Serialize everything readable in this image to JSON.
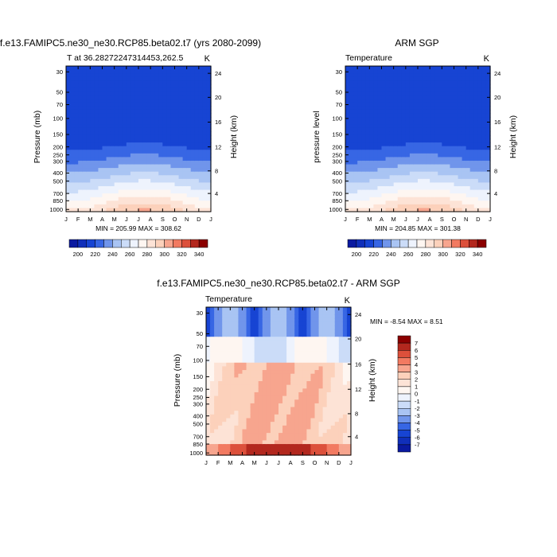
{
  "colors": {
    "cold": "#0a1aa0",
    "mid_blue": "#1a4fe0",
    "light_blue": "#a9c4f3",
    "neutral": "#ffffff",
    "peach": "#fcd1bb",
    "warm": "#f0644a",
    "hot": "#8b0000"
  },
  "chart_data": [
    {
      "type": "heatmap",
      "title": "f.e13.FAMIPC5.ne30_ne30.RCP85.beta02.t7 (yrs 2080-2099)",
      "subtitle_left": "T at 36.28272247314453,262.5",
      "subtitle_right": "K",
      "ylabel": "Pressure (mb)",
      "ylabel_right": "Height (km)",
      "x": [
        "J",
        "F",
        "M",
        "A",
        "M",
        "J",
        "J",
        "A",
        "S",
        "O",
        "N",
        "D",
        "J"
      ],
      "y_ticks": [
        "30",
        "50",
        "70",
        "100",
        "150",
        "200",
        "250",
        "300",
        "400",
        "500",
        "700",
        "850",
        "1000"
      ],
      "y_ticks_right": [
        "24",
        "20",
        "16",
        "12",
        "8",
        "4"
      ],
      "minmax": "MIN = 205.99 MAX = 308.62",
      "colorbar_labels": [
        "200",
        "220",
        "240",
        "260",
        "280",
        "300",
        "320",
        "340"
      ],
      "value_range": [
        205.99,
        308.62
      ]
    },
    {
      "type": "heatmap",
      "title": "ARM SGP",
      "subtitle_left": "Temperature",
      "subtitle_right": "K",
      "ylabel": "pressure level",
      "ylabel_right": "Height (km)",
      "x": [
        "J",
        "F",
        "M",
        "A",
        "M",
        "J",
        "J",
        "A",
        "S",
        "O",
        "N",
        "D",
        "J"
      ],
      "y_ticks": [
        "30",
        "50",
        "70",
        "100",
        "150",
        "200",
        "250",
        "300",
        "400",
        "500",
        "700",
        "850",
        "1000"
      ],
      "y_ticks_right": [
        "24",
        "20",
        "16",
        "12",
        "8",
        "4"
      ],
      "minmax": "MIN = 204.85 MAX = 301.38",
      "colorbar_labels": [
        "200",
        "220",
        "240",
        "260",
        "280",
        "300",
        "320",
        "340"
      ],
      "value_range": [
        204.85,
        301.38
      ]
    },
    {
      "type": "heatmap",
      "title": "f.e13.FAMIPC5.ne30_ne30.RCP85.beta02.t7 - ARM SGP",
      "subtitle_left": "Temperature",
      "subtitle_right": "K",
      "ylabel": "Pressure (mb)",
      "ylabel_right": "Height (km)",
      "x": [
        "J",
        "F",
        "M",
        "A",
        "M",
        "J",
        "J",
        "A",
        "S",
        "O",
        "N",
        "D",
        "J"
      ],
      "y_ticks": [
        "30",
        "50",
        "70",
        "100",
        "150",
        "200",
        "250",
        "300",
        "400",
        "500",
        "700",
        "850",
        "1000"
      ],
      "y_ticks_right": [
        "24",
        "20",
        "16",
        "12",
        "8",
        "4"
      ],
      "minmax": "MIN =  -8.54 MAX =   8.51",
      "colorbar_labels": [
        "7",
        "6",
        "5",
        "4",
        "3",
        "2",
        "1",
        "0",
        "-1",
        "-2",
        "-3",
        "-4",
        "-5",
        "-6",
        "-7"
      ],
      "value_range": [
        -8.54,
        8.51
      ]
    }
  ]
}
